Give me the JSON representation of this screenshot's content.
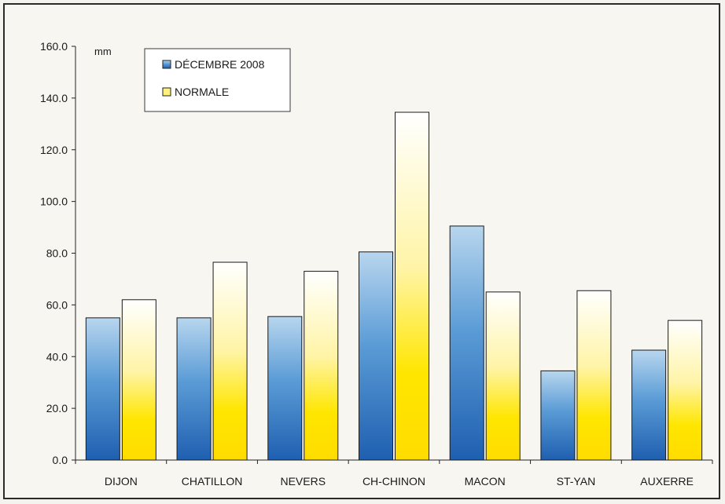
{
  "chart_data": {
    "type": "bar",
    "unit": "mm",
    "categories": [
      "DIJON",
      "CHATILLON",
      "NEVERS",
      "CH-CHINON",
      "MACON",
      "ST-YAN",
      "AUXERRE"
    ],
    "series": [
      {
        "name": "DÉCEMBRE 2008",
        "values": [
          55.0,
          55.0,
          55.5,
          80.5,
          90.5,
          34.5,
          42.5
        ],
        "color": "#2f7fc9"
      },
      {
        "name": "NORMALE",
        "values": [
          62.0,
          76.5,
          73.0,
          134.5,
          65.0,
          65.5,
          54.0
        ],
        "color": "#ffe600"
      }
    ],
    "ylim": [
      0,
      160
    ],
    "yticks": [
      "0.0",
      "20.0",
      "40.0",
      "60.0",
      "80.0",
      "100.0",
      "120.0",
      "140.0",
      "160.0"
    ],
    "ytick_values": [
      0,
      20,
      40,
      60,
      80,
      100,
      120,
      140,
      160
    ],
    "legend_position": "top-left",
    "grid": false
  }
}
